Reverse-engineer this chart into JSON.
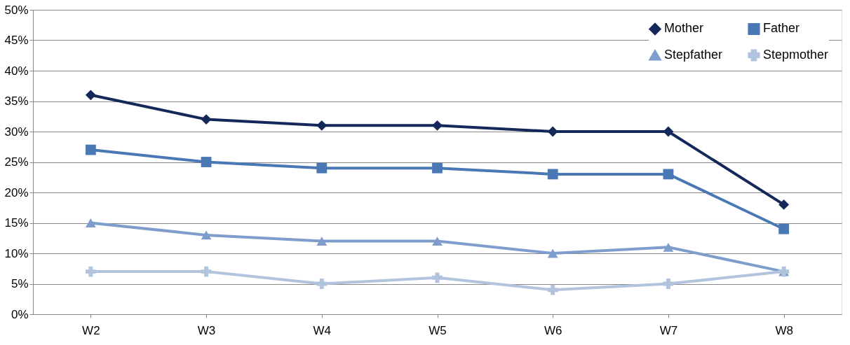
{
  "chart_data": {
    "type": "line",
    "categories": [
      "W2",
      "W3",
      "W4",
      "W5",
      "W6",
      "W7",
      "W8"
    ],
    "series": [
      {
        "name": "Mother",
        "color": "#14285a",
        "marker": "diamond",
        "values": [
          36,
          32,
          31,
          31,
          30,
          30,
          18
        ]
      },
      {
        "name": "Father",
        "color": "#4a78b4",
        "marker": "square",
        "values": [
          27,
          25,
          24,
          24,
          23,
          23,
          14
        ]
      },
      {
        "name": "Stepfather",
        "color": "#7f9dcc",
        "marker": "triangle",
        "values": [
          15,
          13,
          12,
          12,
          10,
          11,
          7
        ]
      },
      {
        "name": "Stepmother",
        "color": "#b2c3de",
        "marker": "cross",
        "values": [
          7,
          7,
          5,
          6,
          4,
          5,
          7
        ]
      }
    ],
    "ylim": [
      0,
      50
    ],
    "yticks": [
      {
        "value": 0,
        "label": "0%"
      },
      {
        "value": 5,
        "label": "5%"
      },
      {
        "value": 10,
        "label": "10%"
      },
      {
        "value": 15,
        "label": "15%"
      },
      {
        "value": 20,
        "label": "20%"
      },
      {
        "value": 25,
        "label": "25%"
      },
      {
        "value": 30,
        "label": "30%"
      },
      {
        "value": 35,
        "label": "35%"
      },
      {
        "value": 40,
        "label": "40%"
      },
      {
        "value": 45,
        "label": "45%"
      },
      {
        "value": 50,
        "label": "50%"
      }
    ],
    "grid": "y",
    "legend": "top right",
    "line_style": "solid"
  }
}
